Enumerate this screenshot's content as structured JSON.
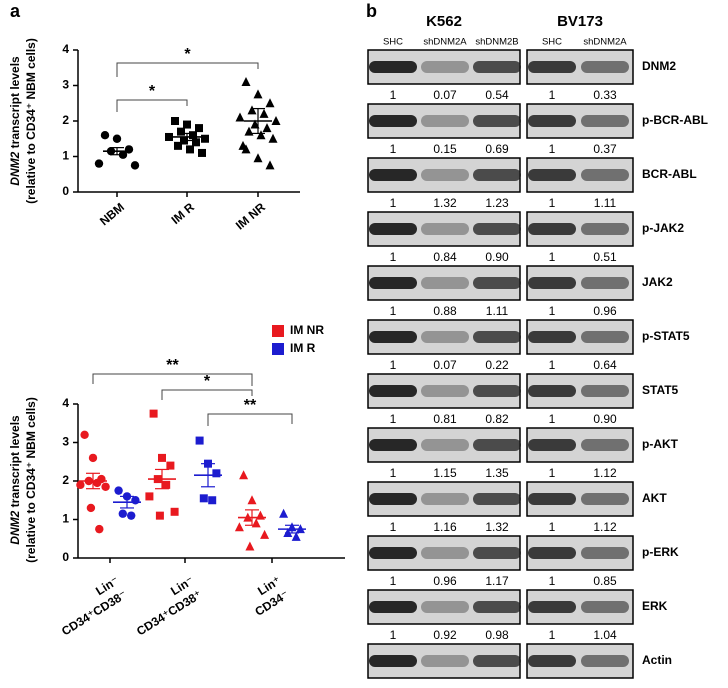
{
  "chart_data": [
    {
      "type": "dot",
      "panel": "a",
      "ylabel": [
        "DNM2",
        "transcript levels",
        "(relative to CD34⁺ NBM cells)"
      ],
      "categories": [
        "NBM",
        "IM R",
        "IM NR"
      ],
      "markers": [
        "circle",
        "square",
        "triangle"
      ],
      "series": [
        {
          "color": "#000000",
          "values": [
            [
              1.6,
              1.5,
              1.2,
              1.15,
              1.05,
              0.8,
              0.75
            ],
            [
              2.0,
              1.9,
              1.8,
              1.7,
              1.6,
              1.55,
              1.5,
              1.45,
              1.4,
              1.3,
              1.2,
              1.1
            ],
            [
              3.1,
              2.75,
              2.5,
              2.3,
              2.2,
              2.1,
              2.0,
              1.9,
              1.8,
              1.7,
              1.6,
              1.5,
              1.3,
              1.2,
              0.95,
              0.75
            ]
          ],
          "mean": [
            1.15,
            1.55,
            2.0
          ],
          "sem": [
            0.1,
            0.1,
            0.35
          ]
        }
      ],
      "ylim": [
        0,
        4
      ],
      "yticks": [
        0,
        1,
        2,
        3,
        4
      ],
      "brackets": [
        {
          "from": [
            0,
            0
          ],
          "to": [
            1,
            0
          ],
          "label": "*"
        },
        {
          "from": [
            0,
            0
          ],
          "to": [
            2,
            0
          ],
          "label": "*"
        }
      ]
    },
    {
      "type": "dot",
      "ylabel": [
        "DNM2",
        "transcript levels",
        "(relative to CD34⁺ NBM cells)"
      ],
      "categories": [
        [
          "Lin⁻",
          "CD34⁺CD38⁻"
        ],
        [
          "Lin⁻",
          "CD34⁺CD38⁺"
        ],
        [
          "Lin⁺",
          "CD34⁻"
        ]
      ],
      "markers": [
        "circle",
        "square",
        "triangle"
      ],
      "series": [
        {
          "name": "IM NR",
          "color": "#e8191f",
          "values": [
            [
              3.2,
              2.6,
              2.05,
              2.0,
              1.95,
              1.9,
              1.85,
              1.3,
              0.75
            ],
            [
              3.75,
              2.6,
              2.4,
              2.05,
              1.9,
              1.6,
              1.2,
              1.1
            ],
            [
              2.15,
              1.5,
              1.1,
              1.05,
              0.9,
              0.8,
              0.6,
              0.3
            ]
          ],
          "mean": [
            2.0,
            2.05,
            1.05
          ],
          "sem": [
            0.2,
            0.25,
            0.2
          ]
        },
        {
          "name": "IM R",
          "color": "#1c1ccf",
          "values": [
            [
              1.75,
              1.6,
              1.5,
              1.15,
              1.1
            ],
            [
              3.05,
              2.45,
              2.2,
              1.55,
              1.5
            ],
            [
              1.15,
              0.8,
              0.75,
              0.65,
              0.55
            ]
          ],
          "mean": [
            1.45,
            2.15,
            0.75
          ],
          "sem": [
            0.15,
            0.3,
            0.1
          ]
        }
      ],
      "ylim": [
        0,
        4
      ],
      "yticks": [
        0,
        1,
        2,
        3,
        4
      ],
      "brackets": [
        {
          "from": [
            0,
            0
          ],
          "to": [
            2,
            0
          ],
          "label": "**"
        },
        {
          "from": [
            1,
            0
          ],
          "to": [
            2,
            0
          ],
          "label": "*"
        },
        {
          "from": [
            1,
            1
          ],
          "to": [
            2,
            1
          ],
          "label": "**"
        }
      ]
    }
  ],
  "blots": {
    "panel": "b",
    "cell_lines": [
      {
        "name": "K562",
        "lanes": [
          "SHC",
          "shDNM2A",
          "shDNM2B"
        ]
      },
      {
        "name": "BV173",
        "lanes": [
          "SHC",
          "shDNM2A"
        ]
      }
    ],
    "rows": [
      {
        "protein": "DNM2",
        "quant": [
          [
            "1",
            "0.07",
            "0.54"
          ],
          [
            "1",
            "0.33"
          ]
        ]
      },
      {
        "protein": "p-BCR-ABL",
        "quant": [
          [
            "1",
            "0.15",
            "0.69"
          ],
          [
            "1",
            "0.37"
          ]
        ]
      },
      {
        "protein": "BCR-ABL",
        "quant": [
          [
            "1",
            "1.32",
            "1.23"
          ],
          [
            "1",
            "1.11"
          ]
        ]
      },
      {
        "protein": "p-JAK2",
        "quant": [
          [
            "1",
            "0.84",
            "0.90"
          ],
          [
            "1",
            "0.51"
          ]
        ]
      },
      {
        "protein": "JAK2",
        "quant": [
          [
            "1",
            "0.88",
            "1.11"
          ],
          [
            "1",
            "0.96"
          ]
        ]
      },
      {
        "protein": "p-STAT5",
        "quant": [
          [
            "1",
            "0.07",
            "0.22"
          ],
          [
            "1",
            "0.64"
          ]
        ]
      },
      {
        "protein": "STAT5",
        "quant": [
          [
            "1",
            "0.81",
            "0.82"
          ],
          [
            "1",
            "0.90"
          ]
        ]
      },
      {
        "protein": "p-AKT",
        "quant": [
          [
            "1",
            "1.15",
            "1.35"
          ],
          [
            "1",
            "1.12"
          ]
        ]
      },
      {
        "protein": "AKT",
        "quant": [
          [
            "1",
            "1.16",
            "1.32"
          ],
          [
            "1",
            "1.12"
          ]
        ]
      },
      {
        "protein": "p-ERK",
        "quant": [
          [
            "1",
            "0.96",
            "1.17"
          ],
          [
            "1",
            "0.85"
          ]
        ]
      },
      {
        "protein": "ERK",
        "quant": [
          [
            "1",
            "0.92",
            "0.98"
          ],
          [
            "1",
            "1.04"
          ]
        ]
      },
      {
        "protein": "Actin"
      }
    ]
  }
}
